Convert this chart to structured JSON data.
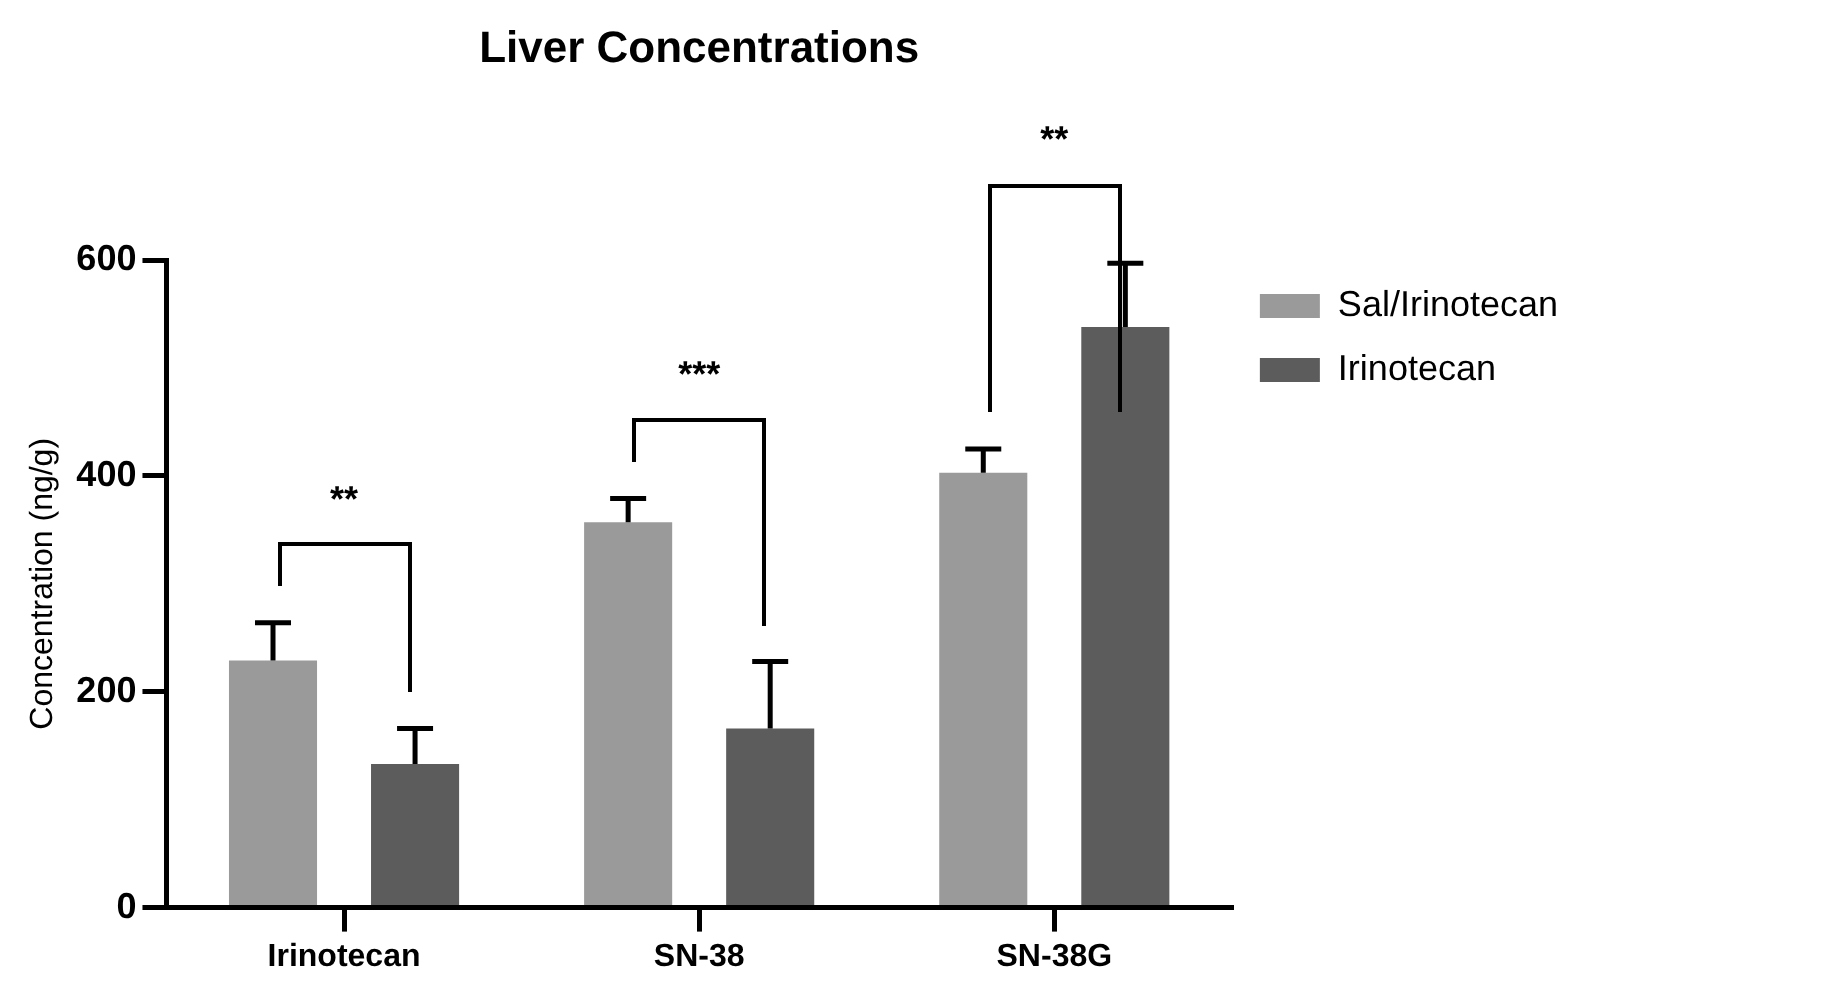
{
  "chart_data": {
    "type": "bar",
    "title": "Liver Concentrations",
    "ylabel": "Concentration (ng/g)",
    "categories": [
      "Irinotecan",
      "SN-38",
      "SN-38G"
    ],
    "series": [
      {
        "name": "Sal/Irinotecan",
        "color": "#9a9a9a",
        "values": [
          229,
          357,
          403
        ],
        "errors": [
          35,
          22,
          22
        ]
      },
      {
        "name": "Irinotecan",
        "color": "#5c5c5c",
        "values": [
          133,
          166,
          538
        ],
        "errors": [
          33,
          62,
          59
        ]
      }
    ],
    "ylim": [
      0,
      600
    ],
    "yticks": [
      0,
      200,
      400,
      600
    ],
    "grid": false,
    "legend": "top right",
    "annotations": [
      "**",
      "***",
      "**"
    ]
  }
}
